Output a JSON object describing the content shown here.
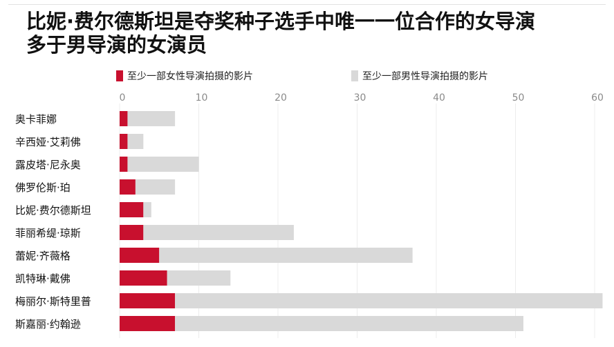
{
  "chart_data": {
    "type": "bar",
    "orientation": "horizontal",
    "stacked": true,
    "title": "比妮·费尔德斯坦是夺奖种子选手中唯一一位合作的女导演多于男导演的女演员",
    "title_lines": [
      "比妮·费尔德斯坦是夺奖种子选手中唯一一位合作的女导演",
      "多于男导演的女演员"
    ],
    "categories": [
      "奥卡菲娜",
      "辛西娅·艾莉佛",
      "露皮塔·尼永奥",
      "佛罗伦斯·珀",
      "比妮·费尔德斯坦",
      "菲丽希缇·琼斯",
      "蕾妮·齐薇格",
      "凯特琳·戴佛",
      "梅丽尔·斯特里普",
      "斯嘉丽·约翰逊"
    ],
    "series": [
      {
        "name": "至少一部女性导演拍摄的影片",
        "color": "#c8102e",
        "values": [
          1,
          1,
          1,
          2,
          3,
          3,
          5,
          6,
          7,
          7
        ]
      },
      {
        "name": "至少一部男性导演拍摄的影片",
        "color": "#d9d9d9",
        "values": [
          6,
          2,
          9,
          5,
          1,
          19,
          32,
          8,
          54,
          44
        ]
      }
    ],
    "xlim": [
      0,
      60
    ],
    "xticks": [
      0,
      10,
      20,
      30,
      40,
      50,
      60
    ],
    "grid": true,
    "legend_position": "top"
  }
}
